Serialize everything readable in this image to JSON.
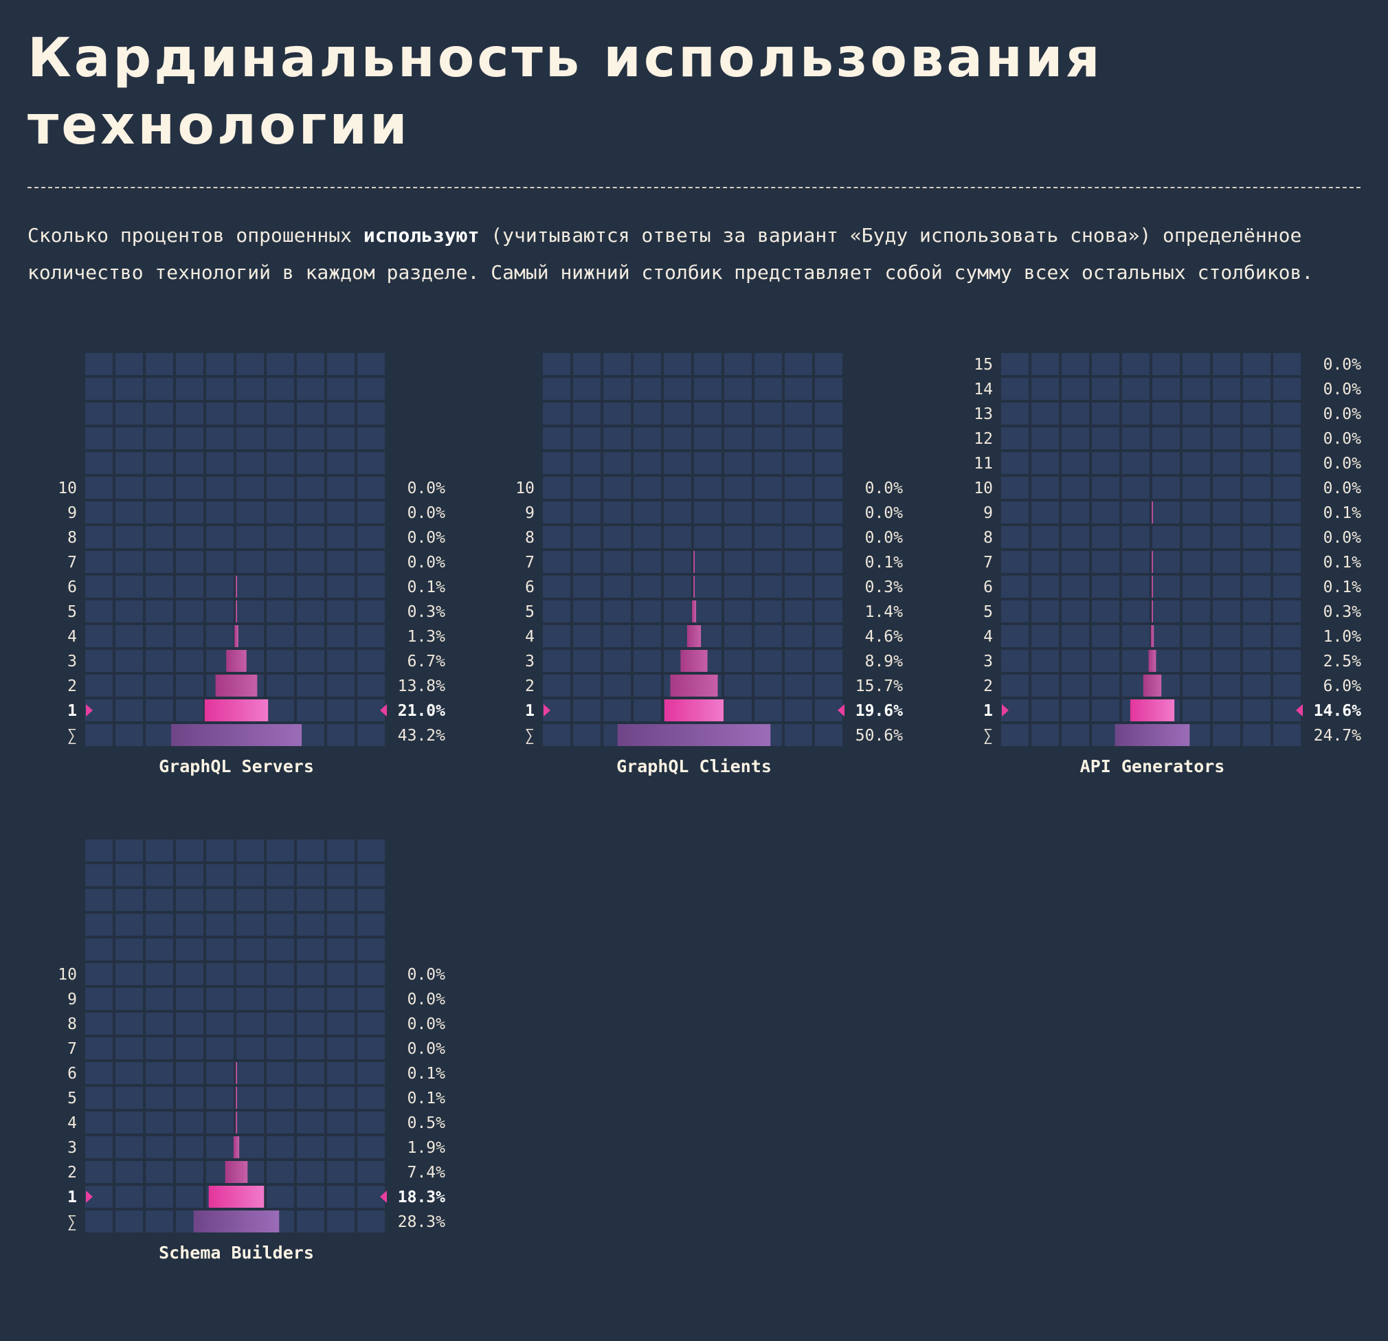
{
  "title_lines": [
    "Кардинальность использования",
    "технологии"
  ],
  "intro": {
    "before": "Сколько процентов опрошенных ",
    "bold": "используют",
    "after": " (учитываются ответы за вариант «Буду использовать снова») определённое количество технологий в каждом разделе. Самый нижний столбик представляет собой сумму всех остальных столбиков."
  },
  "colors": {
    "background": "#243142",
    "cell": "#2d3e5e",
    "bar_highlight": "#f26bc4",
    "bar_regular": "#c0449a",
    "bar_sum": "#8a5aa8",
    "marker": "#e83f9f"
  },
  "chart_data": [
    {
      "type": "bar",
      "title": "GraphQL Servers",
      "categories": [
        "1",
        "2",
        "3",
        "4",
        "5",
        "6",
        "7",
        "8",
        "9",
        "10"
      ],
      "values": [
        21.0,
        13.8,
        6.7,
        1.3,
        0.3,
        0.1,
        0.0,
        0.0,
        0.0,
        0.0
      ],
      "labels": [
        "21.0%",
        "13.8%",
        "6.7%",
        "1.3%",
        "0.3%",
        "0.1%",
        "0.0%",
        "0.0%",
        "0.0%",
        "0.0%"
      ],
      "sum_symbol": "∑",
      "sum_value": 43.2,
      "sum_label": "43.2%",
      "highlight": "1"
    },
    {
      "type": "bar",
      "title": "GraphQL Clients",
      "categories": [
        "1",
        "2",
        "3",
        "4",
        "5",
        "6",
        "7",
        "8",
        "9",
        "10"
      ],
      "values": [
        19.6,
        15.7,
        8.9,
        4.6,
        1.4,
        0.3,
        0.1,
        0.0,
        0.0,
        0.0
      ],
      "labels": [
        "19.6%",
        "15.7%",
        "8.9%",
        "4.6%",
        "1.4%",
        "0.3%",
        "0.1%",
        "0.0%",
        "0.0%",
        "0.0%"
      ],
      "sum_symbol": "∑",
      "sum_value": 50.6,
      "sum_label": "50.6%",
      "highlight": "1"
    },
    {
      "type": "bar",
      "title": "API Generators",
      "categories": [
        "1",
        "2",
        "3",
        "4",
        "5",
        "6",
        "7",
        "8",
        "9",
        "10",
        "11",
        "12",
        "13",
        "14",
        "15"
      ],
      "values": [
        14.6,
        6.0,
        2.5,
        1.0,
        0.3,
        0.1,
        0.1,
        0.0,
        0.1,
        0.0,
        0.0,
        0.0,
        0.0,
        0.0,
        0.0
      ],
      "labels": [
        "14.6%",
        "6.0%",
        "2.5%",
        "1.0%",
        "0.3%",
        "0.1%",
        "0.1%",
        "0.0%",
        "0.1%",
        "0.0%",
        "0.0%",
        "0.0%",
        "0.0%",
        "0.0%",
        "0.0%"
      ],
      "sum_symbol": "∑",
      "sum_value": 24.7,
      "sum_label": "24.7%",
      "highlight": "1"
    },
    {
      "type": "bar",
      "title": "Schema Builders",
      "categories": [
        "1",
        "2",
        "3",
        "4",
        "5",
        "6",
        "7",
        "8",
        "9",
        "10"
      ],
      "values": [
        18.3,
        7.4,
        1.9,
        0.5,
        0.1,
        0.1,
        0.0,
        0.0,
        0.0,
        0.0
      ],
      "labels": [
        "18.3%",
        "7.4%",
        "1.9%",
        "0.5%",
        "0.1%",
        "0.1%",
        "0.0%",
        "0.0%",
        "0.0%",
        "0.0%"
      ],
      "sum_symbol": "∑",
      "sum_value": 28.3,
      "sum_label": "28.3%",
      "highlight": "1"
    }
  ]
}
